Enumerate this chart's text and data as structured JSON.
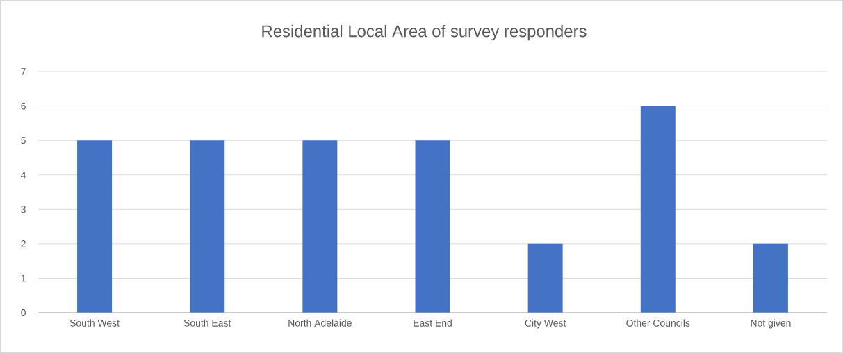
{
  "chart_data": {
    "type": "bar",
    "title": "Residential Local Area of survey responders",
    "categories": [
      "South West",
      "South East",
      "North Adelaide",
      "East End",
      "City West",
      "Other Councils",
      "Not given"
    ],
    "values": [
      5,
      5,
      5,
      5,
      2,
      6,
      2
    ],
    "color": "#4472c4",
    "ylim": [
      0,
      7
    ],
    "yticks": [
      0,
      1,
      2,
      3,
      4,
      5,
      6,
      7
    ],
    "grid": "y"
  }
}
